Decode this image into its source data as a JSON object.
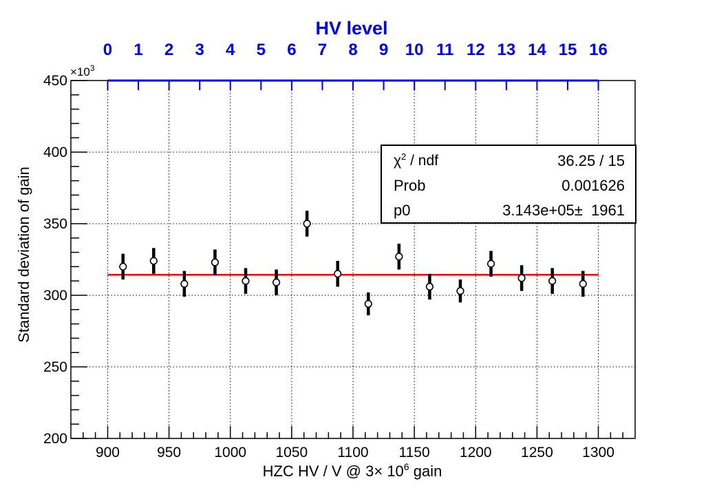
{
  "chart_data": {
    "type": "scatter",
    "title": "",
    "xlabel": "HZC HV / V @ 3× 10^6 gain",
    "xlabel_parts": {
      "prefix": "HZC HV / V @ 3× 10",
      "sup": "6",
      "suffix": " gain"
    },
    "ylabel": "Standard deviation of gain",
    "y_multiplier": {
      "base": "×10",
      "exp": "3"
    },
    "xlim": [
      870,
      1330
    ],
    "ylim": [
      200,
      450
    ],
    "x_ticks": [
      900,
      950,
      1000,
      1050,
      1100,
      1150,
      1200,
      1250,
      1300
    ],
    "y_ticks": [
      200,
      250,
      300,
      350,
      400,
      450
    ],
    "grid": true,
    "top_axis": {
      "label": "HV level",
      "ticks": [
        "0",
        "1",
        "2",
        "3",
        "4",
        "5",
        "6",
        "7",
        "8",
        "9",
        "10",
        "11",
        "12",
        "13",
        "14",
        "15",
        "16"
      ],
      "x_start": 900,
      "x_step": 25,
      "color": "#0000ff"
    },
    "series": [
      {
        "marker": "open-circle",
        "x": [
          912.5,
          937.5,
          962.5,
          987.5,
          1012.5,
          1037.5,
          1062.5,
          1087.5,
          1112.5,
          1137.5,
          1162.5,
          1187.5,
          1212.5,
          1237.5,
          1262.5,
          1287.5
        ],
        "y": [
          320,
          324,
          308,
          323,
          310,
          309,
          350,
          315,
          294,
          327,
          306,
          303,
          322,
          312,
          310,
          308
        ],
        "yerr": [
          9,
          9,
          9,
          9,
          9,
          9,
          9,
          9,
          8,
          9,
          9,
          8,
          9,
          9,
          9,
          9
        ]
      }
    ],
    "fit": {
      "type": "constant",
      "value": 314.3,
      "x_range": [
        900,
        1300
      ],
      "color": "#ff0000"
    },
    "stats_box": {
      "position": "top-right",
      "rows": [
        {
          "label": "χ",
          "label_sup": "2",
          "label_rest": " / ndf",
          "value": "36.25 / 15"
        },
        {
          "label": "Prob",
          "label_sup": "",
          "label_rest": "",
          "value": "0.001626"
        },
        {
          "label": "p0",
          "label_sup": "",
          "label_rest": "",
          "value": "3.143e+05±  1961"
        }
      ]
    }
  }
}
